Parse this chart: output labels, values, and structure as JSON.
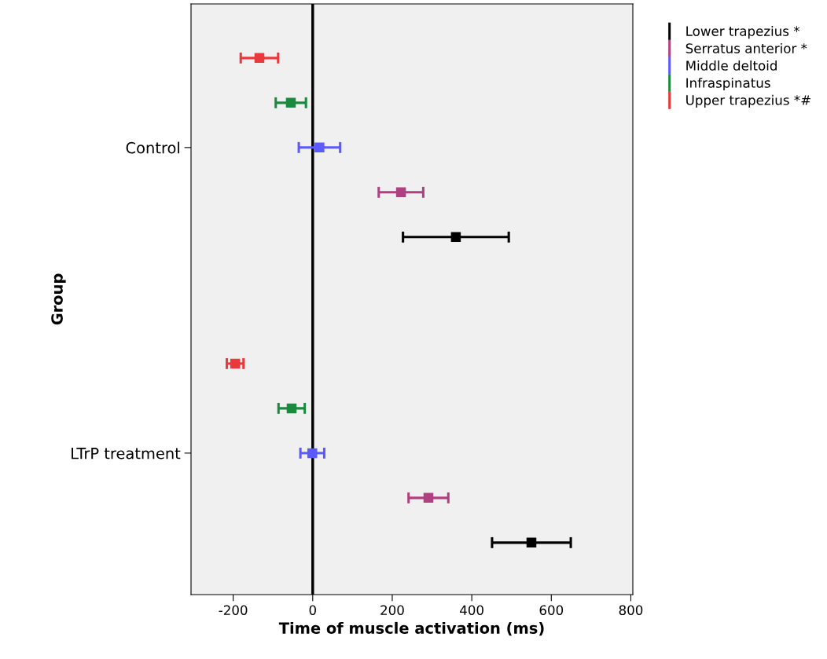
{
  "chart_data": {
    "type": "scatter",
    "orientation": "horizontal",
    "xlabel": "Time of muscle activation (ms)",
    "ylabel": "Group",
    "categories": [
      "Control",
      "LTrP treatment"
    ],
    "series": [
      {
        "name": "Lower trapezius *",
        "color": "#000000",
        "values": [
          360,
          550
        ],
        "errors": [
          133,
          99
        ]
      },
      {
        "name": "Serratus anterior *",
        "color": "#b0407f",
        "values": [
          222,
          291
        ],
        "errors": [
          56,
          50
        ]
      },
      {
        "name": "Middle deltoid",
        "color": "#5a5aff",
        "values": [
          17,
          -1
        ],
        "errors": [
          52,
          30
        ]
      },
      {
        "name": "Infraspinatus",
        "color": "#1a8a3c",
        "values": [
          -55,
          -53
        ],
        "errors": [
          38,
          33
        ]
      },
      {
        "name": "Upper trapezius *#",
        "color": "#e8393c",
        "values": [
          -134,
          -195
        ],
        "errors": [
          47,
          21
        ]
      }
    ],
    "xlim": [
      -306,
      805
    ],
    "xticks": [
      -200,
      0,
      200,
      400,
      600,
      800
    ],
    "ref_lines": [
      {
        "axis": "x",
        "value": 0,
        "color": "#000000"
      }
    ],
    "marker": "square",
    "grid": false,
    "legend": "top right"
  }
}
